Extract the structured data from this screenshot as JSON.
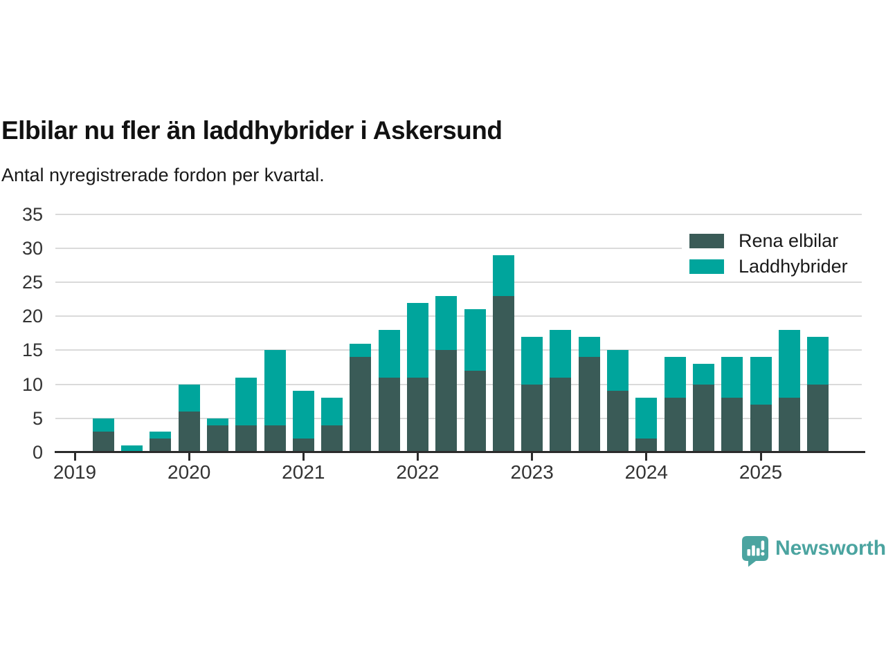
{
  "title": "Elbilar nu fler än laddhybrider i Askersund",
  "subtitle": "Antal nyregistrerade fordon per kvartal.",
  "legend": [
    {
      "label": "Rena elbilar",
      "color": "#3a5b57"
    },
    {
      "label": "Laddhybrider",
      "color": "#00a59c"
    }
  ],
  "footer": {
    "brand": "Newsworthy",
    "logo_color": "#4ba4a0"
  },
  "chart_data": {
    "type": "bar",
    "stacked": true,
    "title": "Elbilar nu fler än laddhybrider i Askersund",
    "subtitle": "Antal nyregistrerade fordon per kvartal.",
    "xlabel": "",
    "ylabel": "",
    "ylim": [
      0,
      35
    ],
    "yticks": [
      0,
      5,
      10,
      15,
      20,
      25,
      30,
      35
    ],
    "grid": true,
    "legend_position": "top-right",
    "categories": [
      "2019 Q1",
      "2019 Q2",
      "2019 Q3",
      "2019 Q4",
      "2020 Q1",
      "2020 Q2",
      "2020 Q3",
      "2020 Q4",
      "2021 Q1",
      "2021 Q2",
      "2021 Q3",
      "2021 Q4",
      "2022 Q1",
      "2022 Q2",
      "2022 Q3",
      "2022 Q4",
      "2023 Q1",
      "2023 Q2",
      "2023 Q3",
      "2023 Q4",
      "2024 Q1",
      "2024 Q2",
      "2024 Q3",
      "2024 Q4",
      "2025 Q1",
      "2025 Q2",
      "2025 Q3"
    ],
    "x_tick_positions": [
      0,
      4,
      8,
      12,
      16,
      20,
      24
    ],
    "x_tick_labels": [
      "2019",
      "2020",
      "2021",
      "2022",
      "2023",
      "2024",
      "2025"
    ],
    "series": [
      {
        "name": "Rena elbilar",
        "color": "#3a5b57",
        "values": [
          0,
          3,
          0,
          2,
          6,
          4,
          4,
          4,
          2,
          4,
          14,
          11,
          11,
          15,
          12,
          23,
          10,
          11,
          14,
          9,
          2,
          8,
          10,
          8,
          7,
          8,
          10
        ]
      },
      {
        "name": "Laddhybrider",
        "color": "#00a59c",
        "values": [
          0,
          2,
          1,
          1,
          4,
          1,
          7,
          11,
          7,
          4,
          2,
          7,
          11,
          8,
          9,
          6,
          7,
          7,
          3,
          6,
          6,
          6,
          3,
          6,
          7,
          10,
          7
        ]
      }
    ],
    "totals": [
      0,
      5,
      1,
      3,
      10,
      5,
      11,
      15,
      9,
      8,
      16,
      18,
      22,
      23,
      21,
      29,
      17,
      18,
      17,
      15,
      8,
      14,
      13,
      14,
      14,
      18,
      17
    ]
  }
}
